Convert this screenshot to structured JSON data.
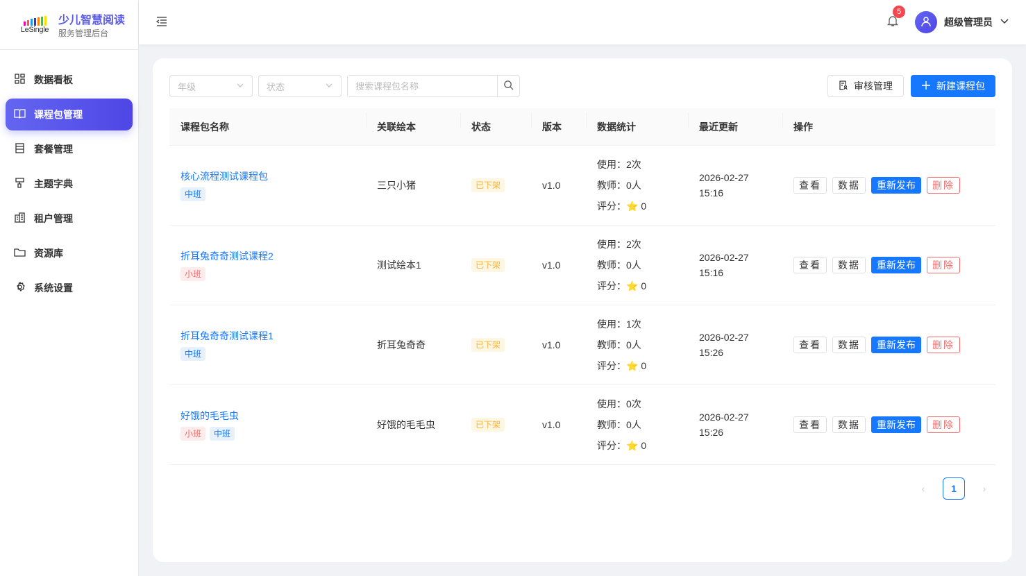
{
  "brand": {
    "logo_word": "LeSingle",
    "title": "少儿智慧阅读",
    "subtitle": "服务管理后台"
  },
  "sidebar": {
    "items": [
      {
        "label": "数据看板",
        "icon": "grid-icon"
      },
      {
        "label": "课程包管理",
        "icon": "book-icon",
        "active": true
      },
      {
        "label": "套餐管理",
        "icon": "list-icon"
      },
      {
        "label": "主题字典",
        "icon": "brush-icon"
      },
      {
        "label": "租户管理",
        "icon": "building-icon"
      },
      {
        "label": "资源库",
        "icon": "folder-icon"
      },
      {
        "label": "系统设置",
        "icon": "gear-icon"
      }
    ]
  },
  "header": {
    "notification_count": "5",
    "user_name": "超级管理员"
  },
  "toolbar": {
    "grade_placeholder": "年级",
    "status_placeholder": "状态",
    "search_placeholder": "搜索课程包名称",
    "review_label": "审核管理",
    "new_label": "新建课程包"
  },
  "table": {
    "columns": [
      "课程包名称",
      "关联绘本",
      "状态",
      "版本",
      "数据统计",
      "最近更新",
      "操作"
    ],
    "rows": [
      {
        "name": "核心流程测试课程包",
        "tags": [
          {
            "label": "中班",
            "type": "mid"
          }
        ],
        "book": "三只小猪",
        "status": "已下架",
        "version": "v1.0",
        "usage": "使用：2次",
        "teachers": "教师：0人",
        "rating_label": "评分：",
        "rating": "0",
        "date": "2026-02-27",
        "time": "15:16"
      },
      {
        "name": "折耳兔奇奇测试课程2",
        "tags": [
          {
            "label": "小班",
            "type": "small"
          }
        ],
        "book": "测试绘本1",
        "status": "已下架",
        "version": "v1.0",
        "usage": "使用：2次",
        "teachers": "教师：0人",
        "rating_label": "评分：",
        "rating": "0",
        "date": "2026-02-27",
        "time": "15:16"
      },
      {
        "name": "折耳兔奇奇测试课程1",
        "tags": [
          {
            "label": "中班",
            "type": "mid"
          }
        ],
        "book": "折耳兔奇奇",
        "status": "已下架",
        "version": "v1.0",
        "usage": "使用：1次",
        "teachers": "教师：0人",
        "rating_label": "评分：",
        "rating": "0",
        "date": "2026-02-27",
        "time": "15:26"
      },
      {
        "name": "好饿的毛毛虫",
        "tags": [
          {
            "label": "小班",
            "type": "small"
          },
          {
            "label": "中班",
            "type": "mid"
          }
        ],
        "book": "好饿的毛毛虫",
        "status": "已下架",
        "version": "v1.0",
        "usage": "使用：0次",
        "teachers": "教师：0人",
        "rating_label": "评分：",
        "rating": "0",
        "date": "2026-02-27",
        "time": "15:26"
      }
    ],
    "actions": {
      "view": "查看",
      "data": "数据",
      "republish": "重新发布",
      "delete": "删除"
    }
  },
  "pagination": {
    "current": "1"
  },
  "colors": {
    "accent": "#6366f1",
    "primary": "#1677ff",
    "danger": "#f56c6c",
    "warning": "#f5b43a"
  }
}
